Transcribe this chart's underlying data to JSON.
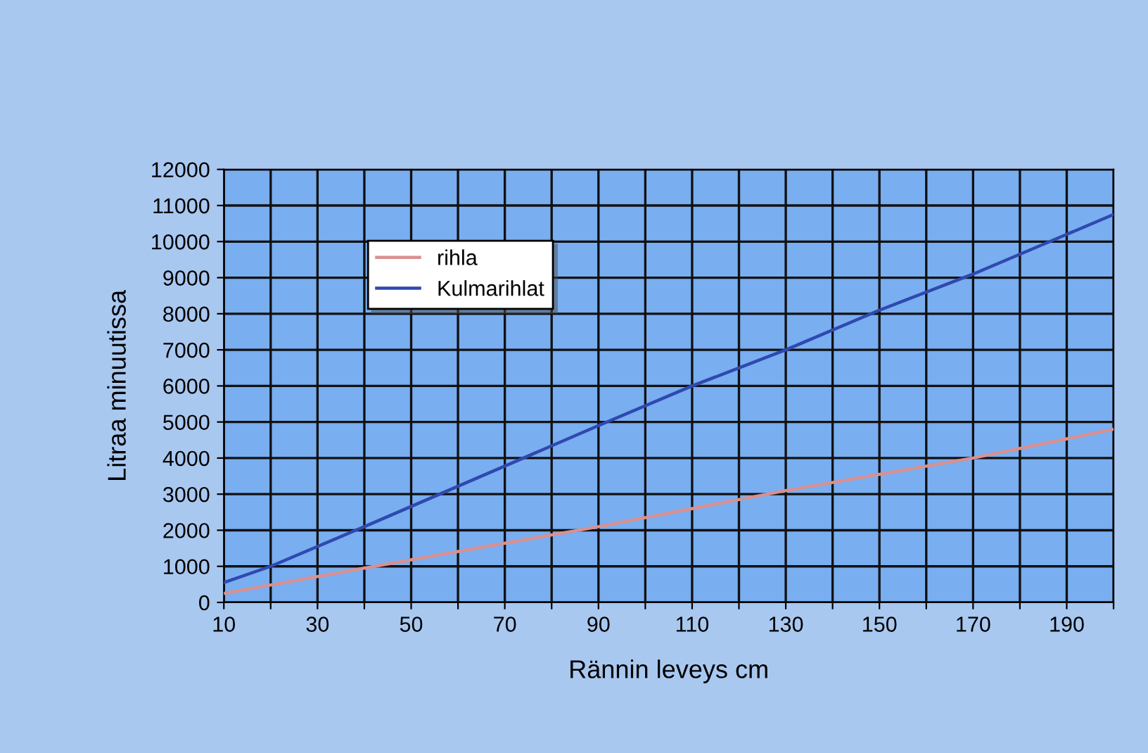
{
  "chart_data": {
    "type": "line",
    "xlabel": "Rännin leveys cm",
    "ylabel": "Litraa minuutissa",
    "xlim": [
      10,
      200
    ],
    "ylim": [
      0,
      12000
    ],
    "xticks": [
      10,
      {
        "value": 20,
        "label": null
      },
      30,
      {
        "value": 40,
        "label": null
      },
      50,
      {
        "value": 60,
        "label": null
      },
      70,
      {
        "value": 80,
        "label": null
      },
      90,
      {
        "value": 100,
        "label": null
      },
      110,
      {
        "value": 120,
        "label": null
      },
      130,
      {
        "value": 140,
        "label": null
      },
      150,
      {
        "value": 160,
        "label": null
      },
      170,
      {
        "value": 180,
        "label": null
      },
      190,
      {
        "value": 200,
        "label": null
      }
    ],
    "yticks": [
      0,
      1000,
      2000,
      3000,
      4000,
      5000,
      6000,
      7000,
      8000,
      9000,
      10000,
      11000,
      12000
    ],
    "grid": true,
    "legend": "top left",
    "marker": "none",
    "line_style": "solid",
    "series": [
      {
        "name": "rihla",
        "color": "#d99090",
        "x": [
          10,
          40,
          90,
          130,
          170,
          200
        ],
        "values": [
          250,
          950,
          2100,
          3100,
          4000,
          4800
        ]
      },
      {
        "name": "Kulmarihlat",
        "color": "#2f49b0",
        "x": [
          10,
          20,
          40,
          90,
          110,
          130,
          150,
          170,
          190,
          200
        ],
        "values": [
          550,
          1000,
          2100,
          4900,
          6000,
          7000,
          8100,
          9100,
          10200,
          10750
        ]
      }
    ]
  }
}
